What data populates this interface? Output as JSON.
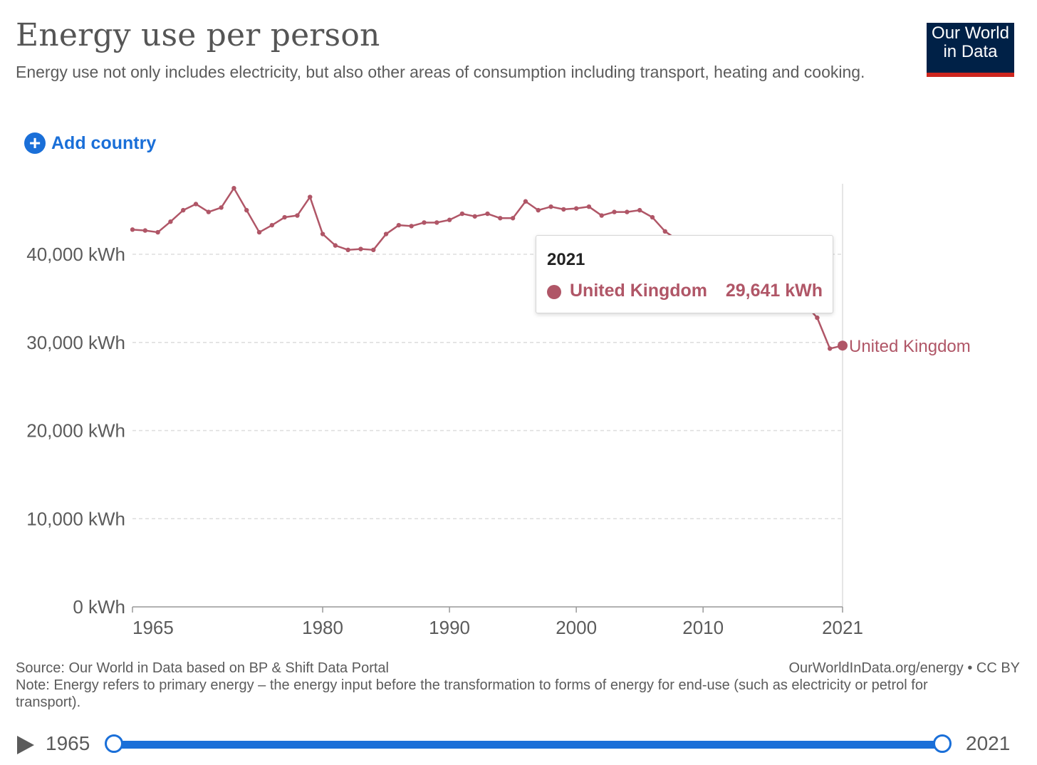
{
  "title": "Energy use per person",
  "subtitle": "Energy use not only includes electricity, but also other areas of consumption including transport, heating and cooking.",
  "logo": {
    "line1": "Our World",
    "line2": "in Data"
  },
  "add_country": {
    "label": "Add country",
    "icon": "plus-circle-icon"
  },
  "colors": {
    "series": "#b05667",
    "accent": "#1a6fd8",
    "logo_bg": "#002147",
    "logo_stripe": "#ce261e"
  },
  "tooltip": {
    "year": "2021",
    "entity": "United Kingdom",
    "value": "29,641 kWh"
  },
  "chart_data": {
    "type": "line",
    "title": "Energy use per person",
    "xlabel": "",
    "ylabel": "",
    "x_range": [
      1965,
      2021
    ],
    "ylim": [
      0,
      48000
    ],
    "y_ticks": [
      0,
      10000,
      20000,
      30000,
      40000
    ],
    "y_tick_labels": [
      "0 kWh",
      "10,000 kWh",
      "20,000 kWh",
      "30,000 kWh",
      "40,000 kWh"
    ],
    "x_ticks": [
      1965,
      1980,
      1990,
      2000,
      2010,
      2021
    ],
    "x_tick_labels": [
      "1965",
      "1980",
      "1990",
      "2000",
      "2010",
      "2021"
    ],
    "grid": "horizontal dashed",
    "series": [
      {
        "name": "United Kingdom",
        "x": [
          1965,
          1966,
          1967,
          1968,
          1969,
          1970,
          1971,
          1972,
          1973,
          1974,
          1975,
          1976,
          1977,
          1978,
          1979,
          1980,
          1981,
          1982,
          1983,
          1984,
          1985,
          1986,
          1987,
          1988,
          1989,
          1990,
          1991,
          1992,
          1993,
          1994,
          1995,
          1996,
          1997,
          1998,
          1999,
          2000,
          2001,
          2002,
          2003,
          2004,
          2005,
          2006,
          2007,
          2008,
          2009,
          2010,
          2011,
          2012,
          2013,
          2014,
          2015,
          2016,
          2017,
          2018,
          2019,
          2020,
          2021
        ],
        "values": [
          42800,
          42700,
          42500,
          43700,
          45000,
          45700,
          44800,
          45300,
          47500,
          45000,
          42500,
          43300,
          44200,
          44400,
          46500,
          42300,
          41000,
          40500,
          40600,
          40500,
          42300,
          43300,
          43200,
          43600,
          43600,
          43900,
          44600,
          44300,
          44600,
          44100,
          44100,
          46000,
          45000,
          45400,
          45100,
          45200,
          45400,
          44400,
          44800,
          44800,
          45000,
          44200,
          42600,
          41600,
          38900,
          39700,
          37300,
          37500,
          36800,
          35300,
          35100,
          35000,
          34600,
          34400,
          32800,
          29300,
          29641
        ]
      }
    ]
  },
  "footer": {
    "source": "Source: Our World in Data based on BP & Shift Data Portal",
    "url": "OurWorldInData.org/energy • CC BY",
    "note": "Note: Energy refers to primary energy – the energy input before the transformation to forms of energy for end-use (such as electricity or petrol for transport)."
  },
  "timeline": {
    "start": "1965",
    "end": "2021",
    "play_icon": "play-icon"
  }
}
